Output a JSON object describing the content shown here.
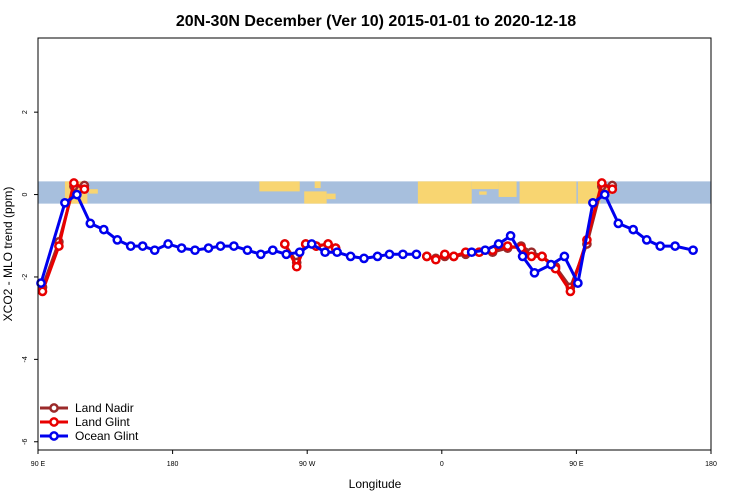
{
  "chart_data": {
    "type": "line",
    "title": "20N-30N December (Ver 10)   2015-01-01 to 2020-12-18",
    "xlabel": "Longitude",
    "ylabel": "XCO2 - MLO trend (ppm)",
    "x_axis": {
      "min_deg": 90,
      "max_deg": 450,
      "ticks": [
        {
          "value": 90,
          "label": "90 E"
        },
        {
          "value": 180,
          "label": "180"
        },
        {
          "value": 270,
          "label": "90 W"
        },
        {
          "value": 360,
          "label": "0"
        },
        {
          "value": 450,
          "label": "90 E"
        },
        {
          "value": 540,
          "label": "180"
        }
      ]
    },
    "xlim": [
      90,
      540
    ],
    "ylim": [
      -6.2,
      3.8
    ],
    "y_ticks": [
      {
        "value": -6,
        "label": "-6"
      },
      {
        "value": -4,
        "label": "-4"
      },
      {
        "value": -2,
        "label": "-2"
      },
      {
        "value": 0,
        "label": "0"
      },
      {
        "value": 2,
        "label": "2"
      }
    ],
    "map_strip": {
      "ymin": -0.22,
      "ymax": 0.32,
      "ocean_color": "#a7bfdd",
      "land_color": "#f8d571"
    },
    "legend": {
      "placement": "bottom-left"
    },
    "series": [
      {
        "name": "Land Nadir",
        "color": "#9b2a2a",
        "points": [
          [
            93,
            -2.25
          ],
          [
            104,
            -1.15
          ],
          [
            114,
            0.2
          ],
          [
            121,
            0.22
          ],
          [
            255,
            -1.2
          ],
          [
            263,
            -1.65
          ],
          [
            269,
            -1.2
          ],
          [
            276,
            -1.25
          ],
          [
            284,
            -1.2
          ],
          [
            289,
            -1.3
          ],
          [
            350,
            -1.5
          ],
          [
            356,
            -1.55
          ],
          [
            362,
            -1.5
          ],
          [
            368,
            -1.5
          ],
          [
            376,
            -1.45
          ],
          [
            385,
            -1.4
          ],
          [
            394,
            -1.4
          ],
          [
            404,
            -1.3
          ],
          [
            413,
            -1.25
          ],
          [
            420,
            -1.4
          ],
          [
            427,
            -1.5
          ],
          [
            436,
            -1.75
          ],
          [
            446,
            -2.25
          ],
          [
            457,
            -1.2
          ],
          [
            467,
            0.2
          ],
          [
            474,
            0.22
          ]
        ]
      },
      {
        "name": "Land Glint",
        "color": "#e80000",
        "points": [
          [
            93,
            -2.35
          ],
          [
            104,
            -1.25
          ],
          [
            114,
            0.28
          ],
          [
            121,
            0.13
          ],
          [
            255,
            -1.2
          ],
          [
            263,
            -1.75
          ],
          [
            269,
            -1.2
          ],
          [
            276,
            -1.25
          ],
          [
            284,
            -1.2
          ],
          [
            289,
            -1.3
          ],
          [
            350,
            -1.5
          ],
          [
            356,
            -1.58
          ],
          [
            362,
            -1.45
          ],
          [
            368,
            -1.5
          ],
          [
            376,
            -1.4
          ],
          [
            385,
            -1.4
          ],
          [
            394,
            -1.35
          ],
          [
            404,
            -1.25
          ],
          [
            413,
            -1.3
          ],
          [
            420,
            -1.5
          ],
          [
            427,
            -1.5
          ],
          [
            436,
            -1.8
          ],
          [
            446,
            -2.35
          ],
          [
            457,
            -1.1
          ],
          [
            467,
            0.28
          ],
          [
            474,
            0.13
          ]
        ]
      },
      {
        "name": "Ocean Glint",
        "color": "#0000ee",
        "points": [
          [
            92,
            -2.15
          ],
          [
            108,
            -0.2
          ],
          [
            116,
            0.0
          ],
          [
            125,
            -0.7
          ],
          [
            134,
            -0.85
          ],
          [
            143,
            -1.1
          ],
          [
            152,
            -1.25
          ],
          [
            160,
            -1.25
          ],
          [
            168,
            -1.35
          ],
          [
            177,
            -1.2
          ],
          [
            186,
            -1.3
          ],
          [
            195,
            -1.35
          ],
          [
            204,
            -1.3
          ],
          [
            212,
            -1.25
          ],
          [
            221,
            -1.25
          ],
          [
            230,
            -1.35
          ],
          [
            239,
            -1.45
          ],
          [
            247,
            -1.35
          ],
          [
            256,
            -1.45
          ],
          [
            265,
            -1.4
          ],
          [
            273,
            -1.2
          ],
          [
            282,
            -1.4
          ],
          [
            290,
            -1.4
          ],
          [
            299,
            -1.5
          ],
          [
            308,
            -1.55
          ],
          [
            317,
            -1.5
          ],
          [
            325,
            -1.45
          ],
          [
            334,
            -1.45
          ],
          [
            343,
            -1.45
          ],
          [
            380,
            -1.4
          ],
          [
            389,
            -1.35
          ],
          [
            398,
            -1.2
          ],
          [
            406,
            -1.0
          ],
          [
            414,
            -1.5
          ],
          [
            422,
            -1.9
          ],
          [
            433,
            -1.7
          ],
          [
            442,
            -1.5
          ],
          [
            451,
            -2.15
          ],
          [
            461,
            -0.2
          ],
          [
            469,
            0.0
          ],
          [
            478,
            -0.7
          ],
          [
            488,
            -0.85
          ],
          [
            497,
            -1.1
          ],
          [
            506,
            -1.25
          ],
          [
            516,
            -1.25
          ],
          [
            528,
            -1.35
          ]
        ]
      }
    ]
  }
}
